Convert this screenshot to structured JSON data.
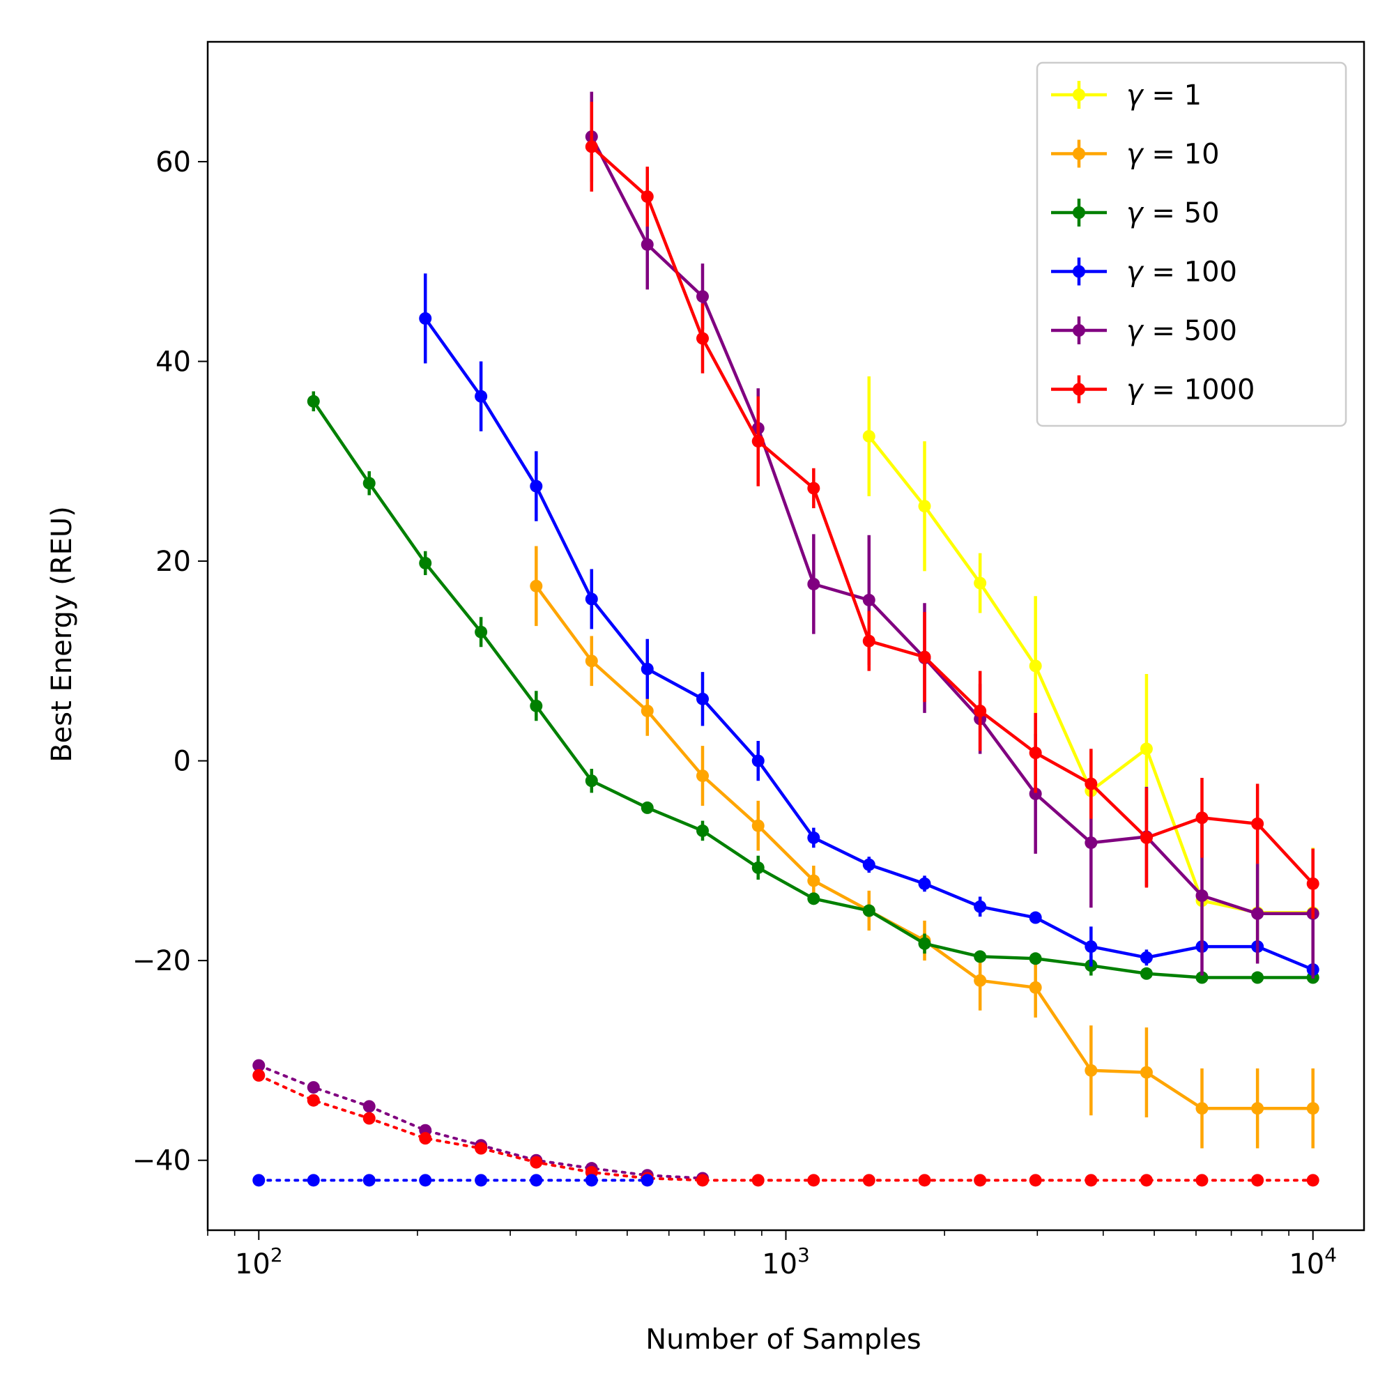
{
  "chart_data": {
    "type": "line",
    "xscale": "log",
    "xlabel": "Number of Samples",
    "ylabel": "Best Energy (REU)",
    "xlim": [
      80,
      12500
    ],
    "ylim": [
      -47,
      72
    ],
    "xticks": [
      {
        "value": 100,
        "base": "10",
        "exp": "2"
      },
      {
        "value": 1000,
        "base": "10",
        "exp": "3"
      },
      {
        "value": 10000,
        "base": "10",
        "exp": "4"
      }
    ],
    "yticks": [
      {
        "value": 60,
        "label": "60"
      },
      {
        "value": 40,
        "label": "40"
      },
      {
        "value": 20,
        "label": "20"
      },
      {
        "value": 0,
        "label": "0"
      },
      {
        "value": -20,
        "label": "−20"
      },
      {
        "value": -40,
        "label": "−40"
      }
    ],
    "legend_position": "upper right",
    "series": [
      {
        "name": "γ = 1",
        "symbol": "γ",
        "eq": " = ",
        "value_label": "1",
        "color": "#ffff00",
        "x": [
          1438,
          1833,
          2336,
          2976,
          3793,
          4833,
          6158,
          7848,
          10000
        ],
        "y": [
          32.5,
          25.5,
          17.8,
          9.5,
          -3.0,
          1.2,
          -14.0,
          -15.2,
          -15.2
        ],
        "err": [
          6.0,
          6.5,
          3.0,
          7.0,
          4.0,
          7.5,
          5.0,
          5.0,
          6.5
        ]
      },
      {
        "name": "γ = 10",
        "symbol": "γ",
        "eq": " = ",
        "value_label": "10",
        "color": "#ffa500",
        "x": [
          336,
          428,
          546,
          695,
          886,
          1129,
          1438,
          1833,
          2336,
          2976,
          3793,
          4833,
          6158,
          7848,
          10000
        ],
        "y": [
          17.5,
          10.0,
          5.0,
          -1.5,
          -6.5,
          -12.0,
          -15.0,
          -18.0,
          -22.0,
          -22.7,
          -31.0,
          -31.2,
          -34.8,
          -34.8,
          -34.8
        ],
        "err": [
          4.0,
          2.5,
          2.5,
          3.0,
          2.5,
          1.5,
          2.0,
          2.0,
          3.0,
          3.0,
          4.5,
          4.5,
          4.0,
          4.0,
          4.0
        ]
      },
      {
        "name": "γ = 50",
        "symbol": "γ",
        "eq": " = ",
        "value_label": "50",
        "color": "#008000",
        "x": [
          127,
          162,
          207,
          264,
          336,
          428,
          546,
          695,
          886,
          1129,
          1438,
          1833,
          2336,
          2976,
          3793,
          4833,
          6158,
          7848,
          10000
        ],
        "y": [
          36.0,
          27.8,
          19.8,
          12.9,
          5.5,
          -2.0,
          -4.7,
          -7.0,
          -10.7,
          -13.8,
          -15.0,
          -18.3,
          -19.6,
          -19.8,
          -20.5,
          -21.3,
          -21.7,
          -21.7,
          -21.7
        ],
        "err": [
          1.0,
          1.2,
          1.2,
          1.5,
          1.5,
          1.2,
          0.6,
          1.0,
          1.2,
          0.6,
          0.6,
          1.0,
          0.5,
          0.5,
          1.0,
          0.5,
          0.3,
          0.3,
          0.3
        ]
      },
      {
        "name": "γ = 100",
        "symbol": "γ",
        "eq": " = ",
        "value_label": "100",
        "color": "#0000ff",
        "x": [
          207,
          264,
          336,
          428,
          546,
          695,
          886,
          1129,
          1438,
          1833,
          2336,
          2976,
          3793,
          4833,
          6158,
          7848,
          10000
        ],
        "y": [
          44.3,
          36.5,
          27.5,
          16.2,
          9.2,
          6.2,
          0.0,
          -7.7,
          -10.4,
          -12.3,
          -14.6,
          -15.7,
          -18.6,
          -19.7,
          -18.6,
          -18.6,
          -20.9
        ],
        "err": [
          4.5,
          3.5,
          3.5,
          3.0,
          3.0,
          2.7,
          2.0,
          1.0,
          0.8,
          0.8,
          1.0,
          0.5,
          2.0,
          0.8,
          0.5,
          0.5,
          0.5
        ]
      },
      {
        "name": "γ = 500",
        "symbol": "γ",
        "eq": " = ",
        "value_label": "500",
        "color": "#800080",
        "x": [
          428,
          546,
          695,
          886,
          1129,
          1438,
          1833,
          2336,
          2976,
          3793,
          4833,
          6158,
          7848,
          10000
        ],
        "y": [
          62.5,
          51.7,
          46.5,
          33.3,
          17.7,
          16.1,
          10.3,
          4.2,
          -3.3,
          -8.2,
          -7.6,
          -13.5,
          -15.3,
          -15.3
        ],
        "err": [
          4.5,
          4.5,
          3.3,
          4.0,
          5.0,
          6.5,
          5.5,
          3.5,
          6.0,
          6.5,
          5.0,
          8.0,
          5.0,
          6.5
        ]
      },
      {
        "name": "γ = 1000",
        "symbol": "γ",
        "eq": " = ",
        "value_label": "1000",
        "color": "#ff0000",
        "x": [
          428,
          546,
          695,
          886,
          1129,
          1438,
          1833,
          2336,
          2976,
          3793,
          4833,
          6158,
          7848,
          10000
        ],
        "y": [
          61.5,
          56.5,
          42.3,
          32.0,
          27.3,
          12.0,
          10.4,
          5.0,
          0.8,
          -2.3,
          -7.7,
          -5.7,
          -6.3,
          -12.3
        ],
        "err": [
          4.5,
          3.0,
          3.5,
          4.5,
          2.0,
          3.0,
          4.5,
          4.0,
          4.0,
          3.5,
          5.0,
          4.0,
          4.0,
          3.5
        ]
      }
    ],
    "dotted_series": [
      {
        "name": "purple baseline",
        "color": "#800080",
        "x": [
          100,
          127,
          162,
          207,
          264,
          336,
          428,
          546,
          695
        ],
        "y": [
          -30.5,
          -32.7,
          -34.6,
          -37.0,
          -38.5,
          -40.0,
          -40.8,
          -41.5,
          -41.8
        ]
      },
      {
        "name": "red baseline",
        "color": "#ff0000",
        "x": [
          100,
          127,
          162,
          207,
          264,
          336,
          428,
          546,
          695,
          886,
          1129,
          1438,
          1833,
          2336,
          2976,
          3793,
          4833,
          6158,
          7848,
          10000
        ],
        "y": [
          -31.5,
          -34.0,
          -35.8,
          -37.8,
          -38.8,
          -40.2,
          -41.2,
          -41.8,
          -42.0,
          -42.0,
          -42.0,
          -42.0,
          -42.0,
          -42.0,
          -42.0,
          -42.0,
          -42.0,
          -42.0,
          -42.0,
          -42.0
        ]
      },
      {
        "name": "blue baseline",
        "color": "#0000ff",
        "x": [
          100,
          127,
          162,
          207,
          264,
          336,
          428,
          546
        ],
        "y": [
          -42.0,
          -42.0,
          -42.0,
          -42.0,
          -42.0,
          -42.0,
          -42.0,
          -42.0
        ]
      }
    ]
  }
}
